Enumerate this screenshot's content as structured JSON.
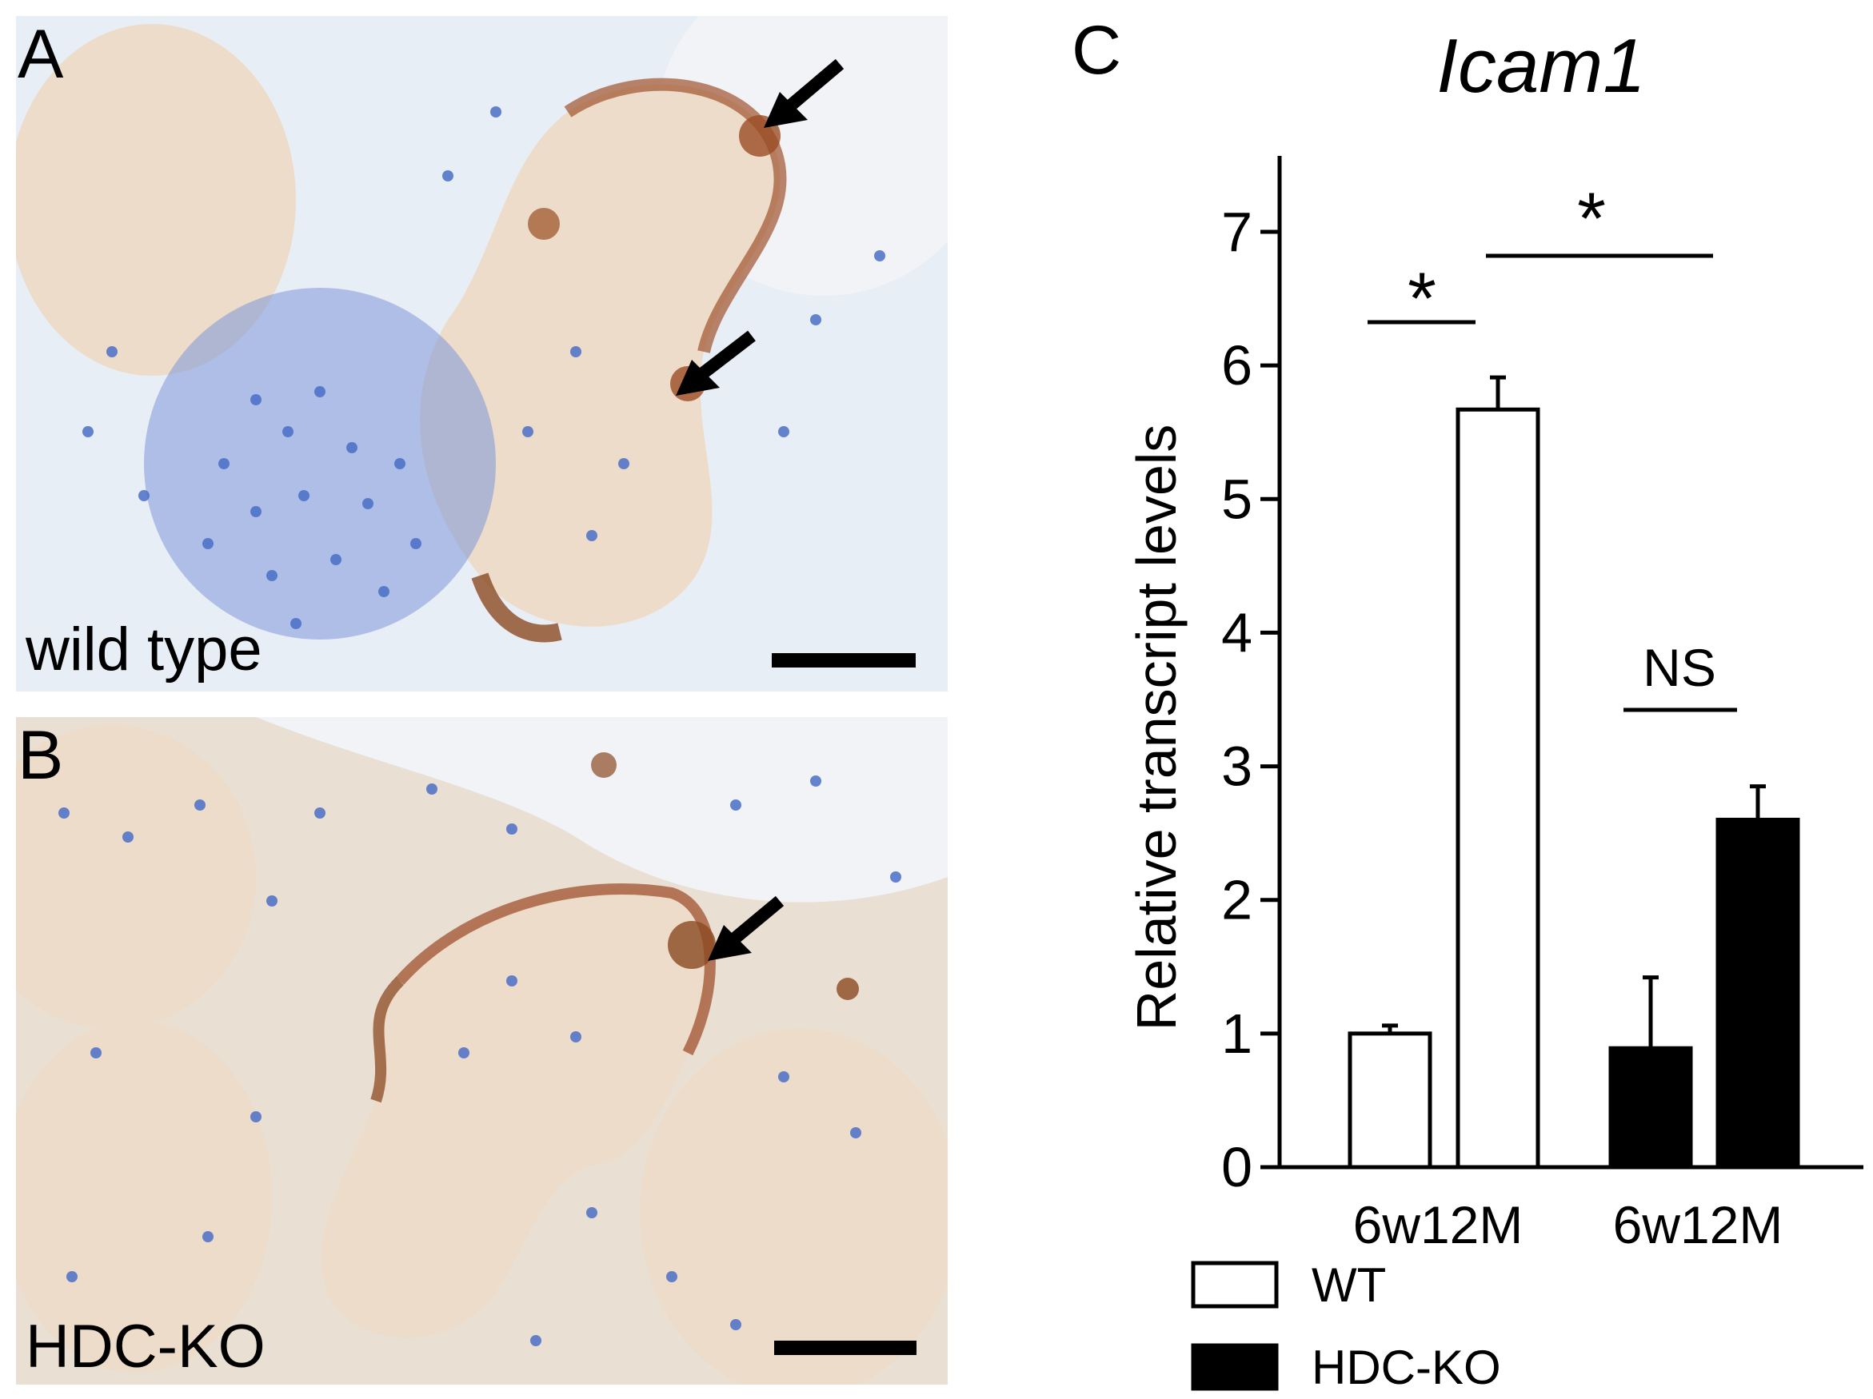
{
  "panel_a": {
    "letter": "A",
    "caption": "wild type"
  },
  "panel_b": {
    "letter": "B",
    "caption": "HDC-KO"
  },
  "panel_c": {
    "letter": "C"
  },
  "colors": {
    "wt_fill": "#ffffff",
    "hdcko_fill": "#000000",
    "stain_brown": "#a0522d",
    "nuclei_blue": "#4a6fc7",
    "background_tissue": "#ecdcc9"
  },
  "chart_data": {
    "type": "bar",
    "title": "Icam1",
    "ylabel": "Relative transcript levels",
    "xlabel": "",
    "ylim": [
      0,
      7.5
    ],
    "yticks": [
      0,
      1,
      2,
      3,
      4,
      5,
      6,
      7
    ],
    "groups": [
      {
        "label": "6w12M",
        "genotype": "WT",
        "bars": [
          {
            "timepoint": "6w",
            "value": 1.0,
            "error": 0.06
          },
          {
            "timepoint": "12M",
            "value": 5.67,
            "error": 0.24
          }
        ]
      },
      {
        "label": "6w12M",
        "genotype": "HDC-KO",
        "bars": [
          {
            "timepoint": "6w",
            "value": 0.89,
            "error": 0.53
          },
          {
            "timepoint": "12M",
            "value": 2.6,
            "error": 0.25
          }
        ]
      }
    ],
    "legend": [
      {
        "name": "WT",
        "fill": "#ffffff"
      },
      {
        "name": "HDC-KO",
        "fill": "#000000"
      }
    ],
    "legend_position": "bottom-left",
    "annotations": [
      "*",
      "*",
      "NS"
    ]
  }
}
